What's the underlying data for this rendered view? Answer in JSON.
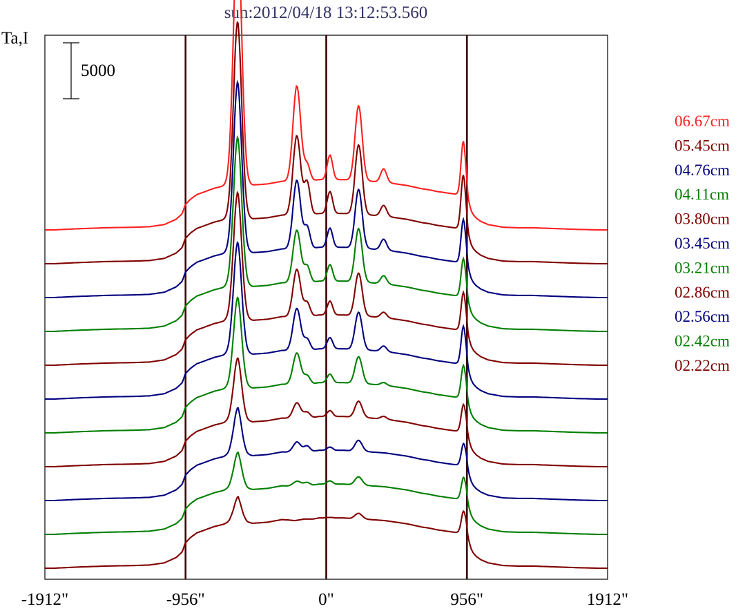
{
  "chart_data": {
    "type": "line",
    "title": "sun:2012/04/18 13:12:53.560",
    "ylabel": "Ta,I",
    "scale_bar_label": "5000",
    "xlim": [
      -1912,
      1912
    ],
    "x_ticks": [
      {
        "value": -1912,
        "label": "-1912\""
      },
      {
        "value": -956,
        "label": "-956\""
      },
      {
        "value": 0,
        "label": "0\""
      },
      {
        "value": 956,
        "label": "956\""
      },
      {
        "value": 1912,
        "label": "1912\""
      }
    ],
    "vertical_markers": [
      -956,
      0,
      956
    ],
    "profile": {
      "x": [
        -1912,
        -1850,
        -1700,
        -1500,
        -1300,
        -1200,
        -1100,
        -1020,
        -980,
        -956,
        -920,
        -880,
        -820,
        -760,
        -700,
        -660,
        -630,
        -610,
        -600,
        -590,
        -575,
        -560,
        -540,
        -520,
        -500,
        -450,
        -400,
        -340,
        -300,
        -250,
        -215,
        -190,
        -170,
        -150,
        -120,
        -90,
        -50,
        -20,
        0,
        20,
        40,
        60,
        80,
        100,
        125,
        160,
        200,
        250,
        300,
        350,
        400,
        450,
        500,
        550,
        600,
        650,
        700,
        750,
        800,
        850,
        880,
        910,
        920,
        930,
        940,
        950,
        956,
        965,
        975,
        985,
        1000,
        1020,
        1050,
        1100,
        1200,
        1300,
        1400,
        1500,
        1700,
        1850,
        1912
      ],
      "base": [
        0,
        0,
        0.02,
        0.04,
        0.05,
        0.06,
        0.1,
        0.2,
        0.3,
        0.48,
        0.58,
        0.66,
        0.72,
        0.78,
        0.82,
        0.86,
        0.92,
        1.0,
        1.05,
        1.0,
        0.94,
        0.9,
        0.86,
        0.85,
        0.84,
        0.85,
        0.86,
        0.89,
        0.91,
        0.9,
        0.89,
        0.9,
        0.91,
        0.92,
        0.92,
        0.92,
        0.94,
        0.94,
        0.95,
        0.95,
        0.95,
        0.94,
        0.94,
        0.94,
        0.94,
        0.93,
        0.93,
        0.92,
        0.91,
        0.9,
        0.89,
        0.87,
        0.85,
        0.83,
        0.8,
        0.77,
        0.75,
        0.72,
        0.7,
        0.68,
        0.67,
        0.66,
        0.7,
        0.76,
        0.8,
        0.78,
        0.7,
        0.55,
        0.45,
        0.36,
        0.28,
        0.22,
        0.16,
        0.1,
        0.05,
        0.04,
        0.04,
        0.03,
        0.01,
        0,
        0
      ],
      "peaks": [
        {
          "x": -603,
          "w": 28,
          "h": [
            4.6,
            3.5,
            3.0,
            2.6,
            2.2,
            1.9,
            1.5,
            1.0,
            0.7,
            0.5,
            0.3
          ]
        },
        {
          "x": -200,
          "w": 26,
          "h": [
            1.8,
            1.5,
            1.3,
            1.0,
            0.9,
            0.8,
            0.6,
            0.3,
            0.2,
            0.1,
            0.0
          ]
        },
        {
          "x": -130,
          "w": 20,
          "h": [
            0.3,
            0.6,
            0.4,
            0.3,
            0.25,
            0.2,
            0.15,
            0.1,
            0.1,
            0.05,
            0.0
          ]
        },
        {
          "x": 25,
          "w": 18,
          "h": [
            0.45,
            0.4,
            0.35,
            0.3,
            0.25,
            0.2,
            0.15,
            0.1,
            0.05,
            0.05,
            0.0
          ]
        },
        {
          "x": 220,
          "w": 24,
          "h": [
            1.4,
            1.3,
            1.1,
            1.0,
            0.8,
            0.7,
            0.5,
            0.3,
            0.2,
            0.15,
            0.1
          ]
        },
        {
          "x": 390,
          "w": 20,
          "h": [
            0.25,
            0.2,
            0.2,
            0.15,
            0.1,
            0.1,
            0.05,
            0.05,
            0.0,
            0.0,
            0.0
          ]
        },
        {
          "x": 930,
          "w": 15,
          "h": [
            0.9,
            0.9,
            0.7,
            0.6,
            0.6,
            0.6,
            0.5,
            0.4,
            0.3,
            0.3,
            0.3
          ]
        }
      ]
    },
    "series": [
      {
        "name": "06.67cm",
        "color": "#ff2020",
        "offset": 10.0,
        "amplitude": 1.58
      },
      {
        "name": "05.45cm",
        "color": "#800000",
        "offset": 9.0,
        "amplitude": 1.58
      },
      {
        "name": "04.76cm",
        "color": "#00007f",
        "offset": 8.0,
        "amplitude": 1.58
      },
      {
        "name": "04.11cm",
        "color": "#007f00",
        "offset": 7.0,
        "amplitude": 1.58
      },
      {
        "name": "03.80cm",
        "color": "#800000",
        "offset": 6.0,
        "amplitude": 1.58
      },
      {
        "name": "03.45cm",
        "color": "#00007f",
        "offset": 5.0,
        "amplitude": 1.58
      },
      {
        "name": "03.21cm",
        "color": "#007f00",
        "offset": 4.0,
        "amplitude": 1.58
      },
      {
        "name": "02.86cm",
        "color": "#800000",
        "offset": 3.0,
        "amplitude": 1.58
      },
      {
        "name": "02.56cm",
        "color": "#00007f",
        "offset": 2.0,
        "amplitude": 1.58
      },
      {
        "name": "02.42cm",
        "color": "#007f00",
        "offset": 1.0,
        "amplitude": 1.58
      },
      {
        "name": "02.22cm",
        "color": "#800000",
        "offset": 0.0,
        "amplitude": 1.58
      }
    ],
    "legend_placement": "right",
    "grid": false
  }
}
